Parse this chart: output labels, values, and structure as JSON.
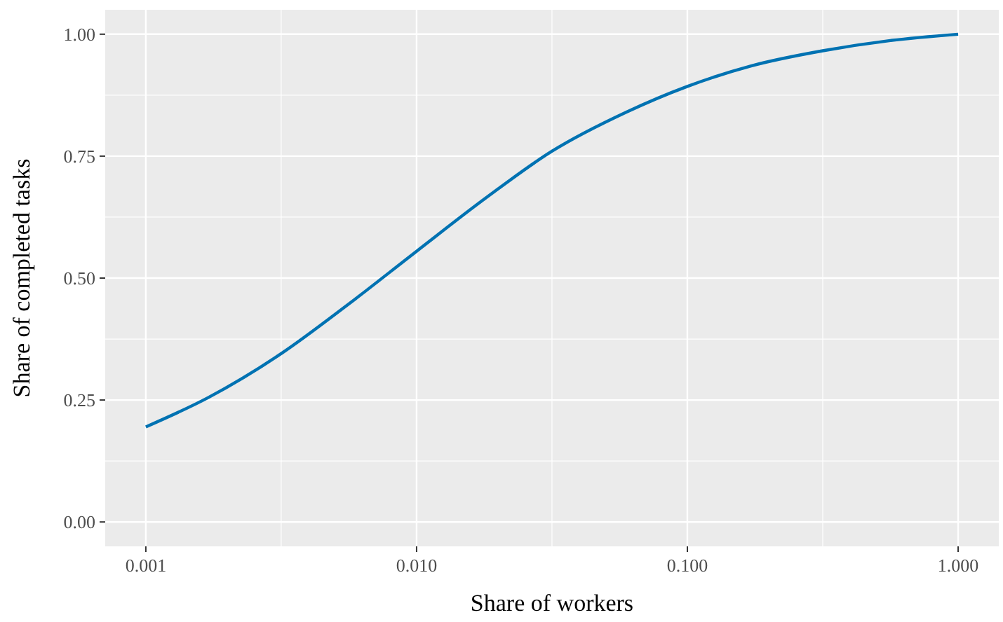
{
  "chart_data": {
    "type": "line",
    "xlabel": "Share of workers",
    "ylabel": "Share of completed tasks",
    "log": "x",
    "grid": true,
    "line_style": "solid",
    "marker": "none",
    "xlim": [
      0.000708,
      1.413
    ],
    "ylim": [
      -0.05,
      1.05
    ],
    "xticks": [
      {
        "value": 0.001,
        "label": "0.001"
      },
      {
        "value": 0.01,
        "label": "0.010"
      },
      {
        "value": 0.1,
        "label": "0.100"
      },
      {
        "value": 1,
        "label": "1.000"
      }
    ],
    "yticks": [
      {
        "value": 0,
        "label": "0.00"
      },
      {
        "value": 0.25,
        "label": "0.25"
      },
      {
        "value": 0.5,
        "label": "0.50"
      },
      {
        "value": 0.75,
        "label": "0.75"
      },
      {
        "value": 1,
        "label": "1.00"
      }
    ],
    "series": [
      {
        "color": "#0072b2",
        "x": [
          0.001,
          0.0017,
          0.00316,
          0.00556,
          0.01,
          0.0181,
          0.0316,
          0.0594,
          0.1,
          0.172,
          0.316,
          0.562,
          1
        ],
        "values": [
          0.195,
          0.255,
          0.345,
          0.445,
          0.555,
          0.665,
          0.76,
          0.84,
          0.893,
          0.935,
          0.966,
          0.987,
          1.0
        ]
      }
    ]
  }
}
